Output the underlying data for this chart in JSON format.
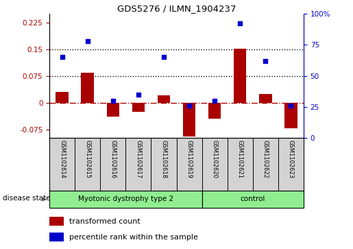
{
  "title": "GDS5276 / ILMN_1904237",
  "samples": [
    "GSM1102614",
    "GSM1102615",
    "GSM1102616",
    "GSM1102617",
    "GSM1102618",
    "GSM1102619",
    "GSM1102620",
    "GSM1102621",
    "GSM1102622",
    "GSM1102623"
  ],
  "transformed_count": [
    0.03,
    0.085,
    -0.04,
    -0.025,
    0.02,
    -0.095,
    -0.045,
    0.152,
    0.025,
    -0.072
  ],
  "percentile_rank": [
    65,
    78,
    30,
    35,
    65,
    26,
    30,
    92,
    62,
    26
  ],
  "group_configs": [
    {
      "label": "Myotonic dystrophy type 2",
      "start": 0,
      "end": 6
    },
    {
      "label": "control",
      "start": 6,
      "end": 10
    }
  ],
  "ylim_left": [
    -0.1,
    0.25
  ],
  "ylim_right": [
    0,
    100
  ],
  "yticks_left": [
    -0.075,
    0,
    0.075,
    0.15,
    0.225
  ],
  "yticks_right": [
    0,
    25,
    50,
    75,
    100
  ],
  "hlines": [
    0.075,
    0.15
  ],
  "bar_color": "#AA0000",
  "dot_color": "#0000CC",
  "zero_line_color": "#AA0000",
  "group_color": "#90EE90",
  "sample_bg_color": "#D3D3D3",
  "disease_state_label": "disease state",
  "legend_bar": "transformed count",
  "legend_dot": "percentile rank within the sample",
  "bg_color": "#FFFFFF"
}
